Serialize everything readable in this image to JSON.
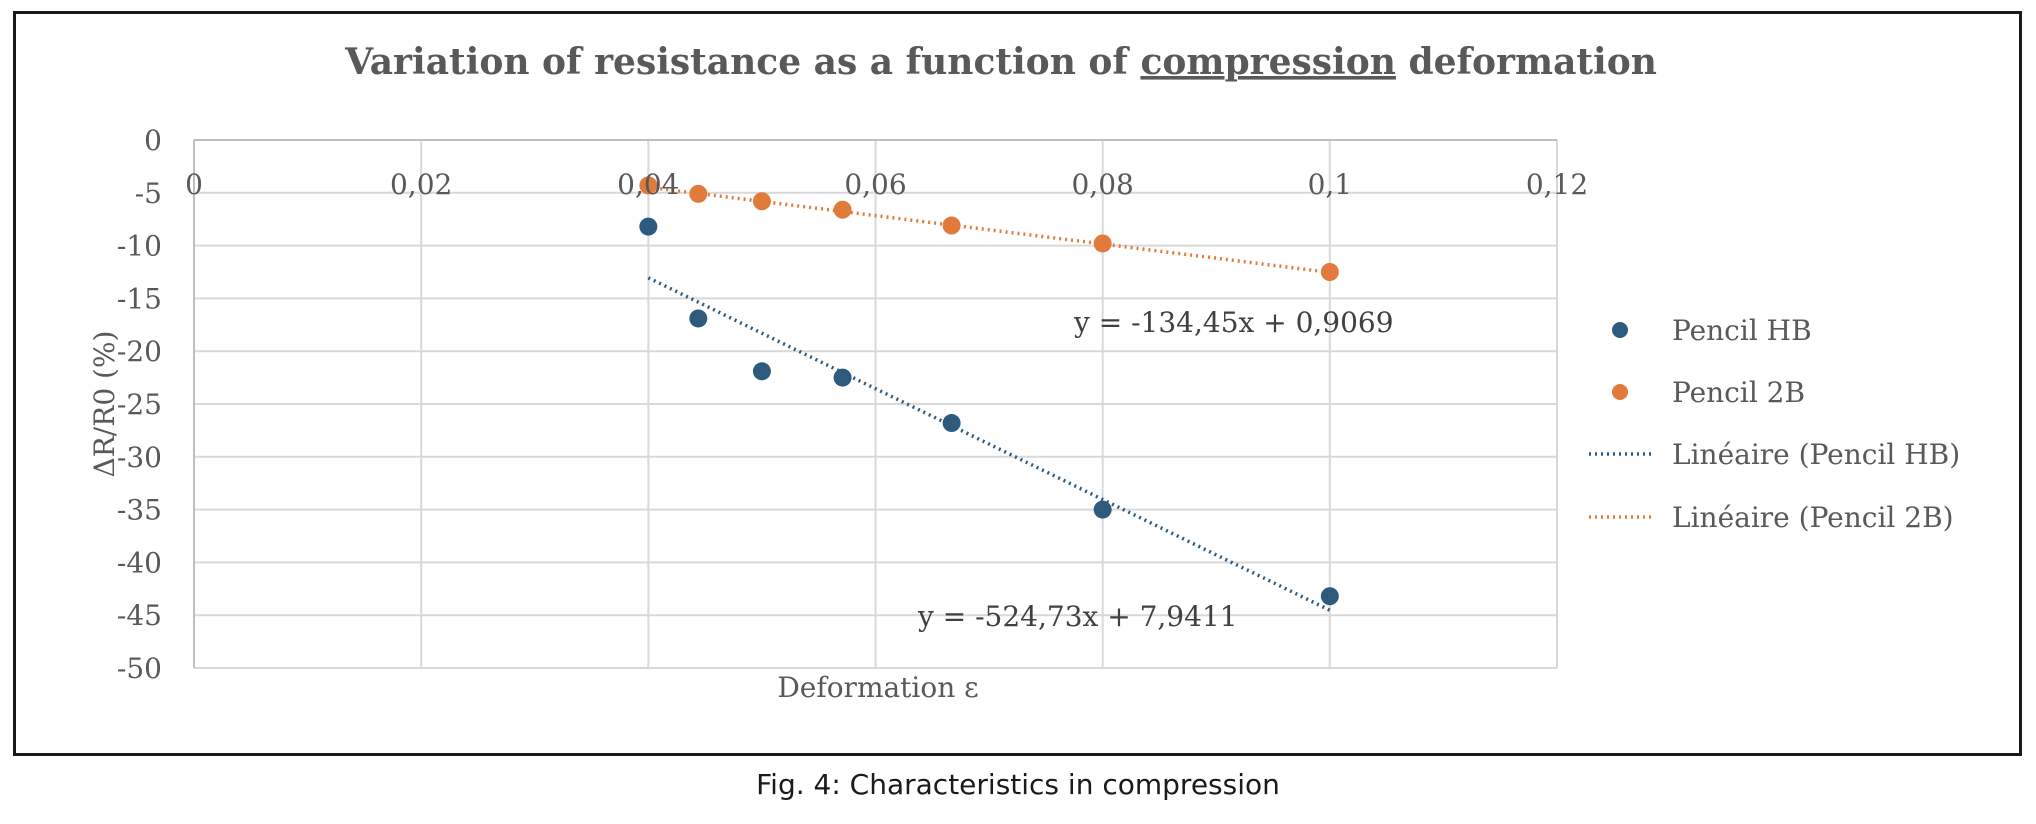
{
  "caption": "Fig. 4: Characteristics in compression",
  "chart_data": {
    "type": "scatter",
    "title": {
      "before": "Variation of resistance as a function of ",
      "underlined": "compression",
      "after": " deformation"
    },
    "xlabel": "Deformation ε",
    "ylabel": "ΔR/R0 (%)",
    "xlim": [
      0,
      0.12
    ],
    "ylim": [
      -50,
      0
    ],
    "x_ticks": [
      0,
      0.02,
      0.04,
      0.06,
      0.08,
      0.1,
      0.12
    ],
    "x_tick_labels": [
      "0",
      "0,02",
      "0,04",
      "0,06",
      "0,08",
      "0,1",
      "0,12"
    ],
    "y_ticks": [
      0,
      -5,
      -10,
      -15,
      -20,
      -25,
      -30,
      -35,
      -40,
      -45,
      -50
    ],
    "y_tick_labels": [
      "0",
      "-5",
      "-10",
      "-15",
      "-20",
      "-25",
      "-30",
      "-35",
      "-40",
      "-45",
      "-50"
    ],
    "grid": true,
    "legend_position": "right",
    "series": [
      {
        "name": "Pencil HB",
        "color": "#2e5b7d",
        "x": [
          0.04,
          0.0444,
          0.05,
          0.0571,
          0.0667,
          0.08,
          0.1
        ],
        "y": [
          -8.2,
          -16.9,
          -21.9,
          -22.5,
          -26.8,
          -35.0,
          -43.2
        ]
      },
      {
        "name": "Pencil 2B",
        "color": "#e07b3c",
        "x": [
          0.04,
          0.0444,
          0.05,
          0.0571,
          0.0667,
          0.08,
          0.1
        ],
        "y": [
          -4.3,
          -5.1,
          -5.8,
          -6.6,
          -8.1,
          -9.8,
          -12.5
        ]
      }
    ],
    "trendlines": [
      {
        "name": "Linéaire (Pencil HB)",
        "series": "Pencil HB",
        "color": "#2e5b7d",
        "slope": -524.73,
        "intercept": 7.9411,
        "x_range": [
          0.04,
          0.1
        ],
        "equation": "y = -524,73x + 7,9411"
      },
      {
        "name": "Linéaire (Pencil 2B)",
        "series": "Pencil 2B",
        "color": "#e07b3c",
        "slope": -134.45,
        "intercept": 0.9069,
        "x_range": [
          0.04,
          0.1
        ],
        "equation": "y = -134,45x + 0,9069"
      }
    ]
  }
}
